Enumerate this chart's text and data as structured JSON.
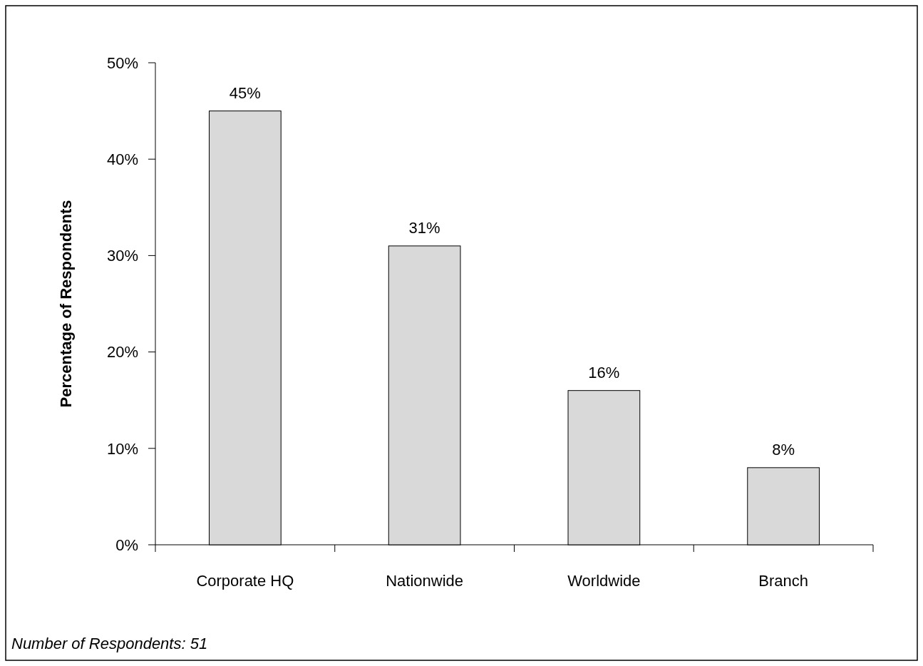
{
  "chart_data": {
    "type": "bar",
    "ylabel": "Percentage of Respondents",
    "categories": [
      "Corporate HQ",
      "Nationwide",
      "Worldwide",
      "Branch"
    ],
    "values": [
      45,
      31,
      16,
      8
    ],
    "color": "#d9d9d9",
    "ylim": [
      0,
      50
    ],
    "yticks": [
      {
        "value": 0,
        "label": "0%"
      },
      {
        "value": 10,
        "label": "10%"
      },
      {
        "value": 20,
        "label": "20%"
      },
      {
        "value": 30,
        "label": "30%"
      },
      {
        "value": 40,
        "label": "40%"
      },
      {
        "value": 50,
        "label": "50%"
      }
    ],
    "data_labels": true,
    "value_labels": [
      "45%",
      "31%",
      "16%",
      "8%"
    ],
    "annotations": [
      "Number of Respondents: 51"
    ]
  }
}
